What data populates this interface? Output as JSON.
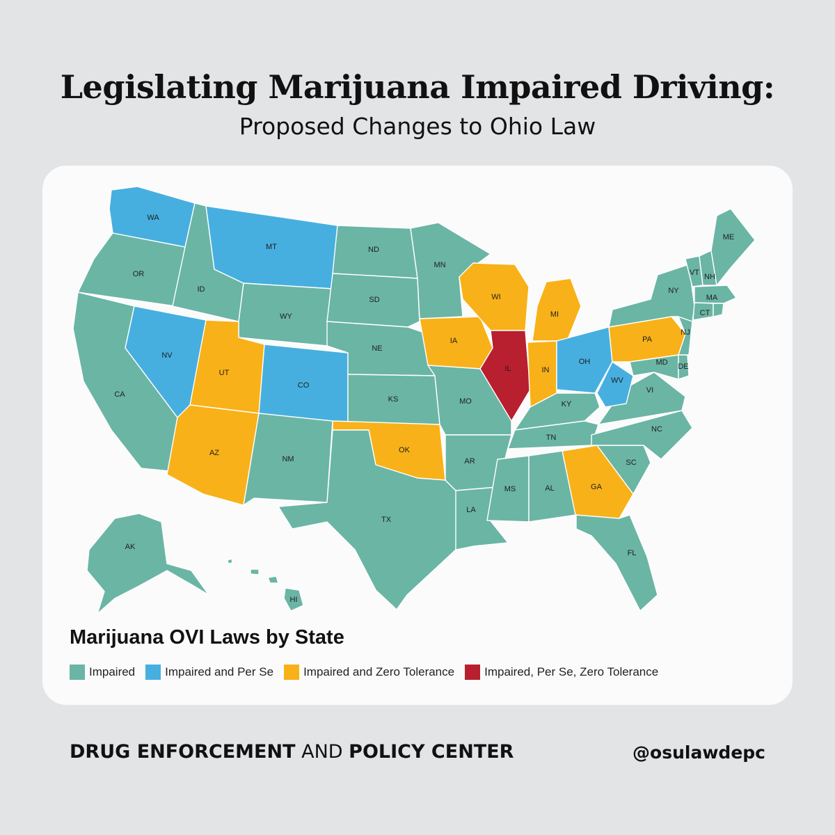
{
  "header": {
    "title": "Legislating Marijuana Impaired Driving:",
    "subtitle": "Proposed Changes to Ohio Law"
  },
  "map": {
    "legend_title": "Marijuana OVI Laws by State",
    "categories": [
      {
        "key": "impaired",
        "label": "Impaired",
        "color": "#6bb5a5"
      },
      {
        "key": "per_se",
        "label": "Impaired and Per Se",
        "color": "#47afe0"
      },
      {
        "key": "zero_tol",
        "label": "Impaired and Zero Tolerance",
        "color": "#f8b118"
      },
      {
        "key": "all_three",
        "label": "Impaired, Per Se, Zero Tolerance",
        "color": "#b81f2f"
      }
    ],
    "states": {
      "WA": "per_se",
      "OR": "impaired",
      "CA": "impaired",
      "ID": "impaired",
      "NV": "per_se",
      "MT": "per_se",
      "WY": "impaired",
      "UT": "zero_tol",
      "AZ": "zero_tol",
      "CO": "per_se",
      "NM": "impaired",
      "ND": "impaired",
      "SD": "impaired",
      "NE": "impaired",
      "KS": "impaired",
      "OK": "zero_tol",
      "TX": "impaired",
      "MN": "impaired",
      "IA": "zero_tol",
      "MO": "impaired",
      "AR": "impaired",
      "LA": "impaired",
      "WI": "zero_tol",
      "IL": "all_three",
      "MI": "zero_tol",
      "IN": "zero_tol",
      "OH": "per_se",
      "KY": "impaired",
      "TN": "impaired",
      "MS": "impaired",
      "AL": "impaired",
      "GA": "zero_tol",
      "FL": "impaired",
      "SC": "impaired",
      "NC": "impaired",
      "VA": "impaired",
      "WV": "per_se",
      "PA": "zero_tol",
      "NY": "impaired",
      "VT": "impaired",
      "NH": "impaired",
      "ME": "impaired",
      "MA": "impaired",
      "CT": "impaired",
      "RI": "impaired",
      "NJ": "impaired",
      "DE": "impaired",
      "MD": "impaired",
      "AK": "impaired",
      "HI": "impaired"
    },
    "labels": {
      "WA": "WA",
      "OR": "OR",
      "CA": "CA",
      "ID": "ID",
      "NV": "NV",
      "MT": "MT",
      "WY": "WY",
      "UT": "UT",
      "AZ": "AZ",
      "CO": "CO",
      "NM": "NM",
      "ND": "ND",
      "SD": "SD",
      "NE": "NE",
      "KS": "KS",
      "OK": "OK",
      "TX": "TX",
      "MN": "MN",
      "IA": "IA",
      "MO": "MO",
      "AR": "AR",
      "LA": "LA",
      "WI": "WI",
      "IL": "IL",
      "MI": "MI",
      "IN": "IN",
      "OH": "OH",
      "KY": "KY",
      "TN": "TN",
      "MS": "MS",
      "AL": "AL",
      "GA": "GA",
      "FL": "FL",
      "SC": "SC",
      "NC": "NC",
      "VI": "VI",
      "WV": "WV",
      "PA": "PA",
      "NY": "NY",
      "VT": "VT",
      "NH": "NH",
      "ME": "ME",
      "MA": "MA",
      "CT": "CT",
      "NJ": "NJ",
      "DE": "DE",
      "MD": "MD",
      "AK": "AK",
      "HI": "HI"
    }
  },
  "footer": {
    "org_part1": "DRUG ENFORCEMENT",
    "org_part2": "AND",
    "org_part3": "POLICY CENTER",
    "handle": "@osulawdepc"
  }
}
